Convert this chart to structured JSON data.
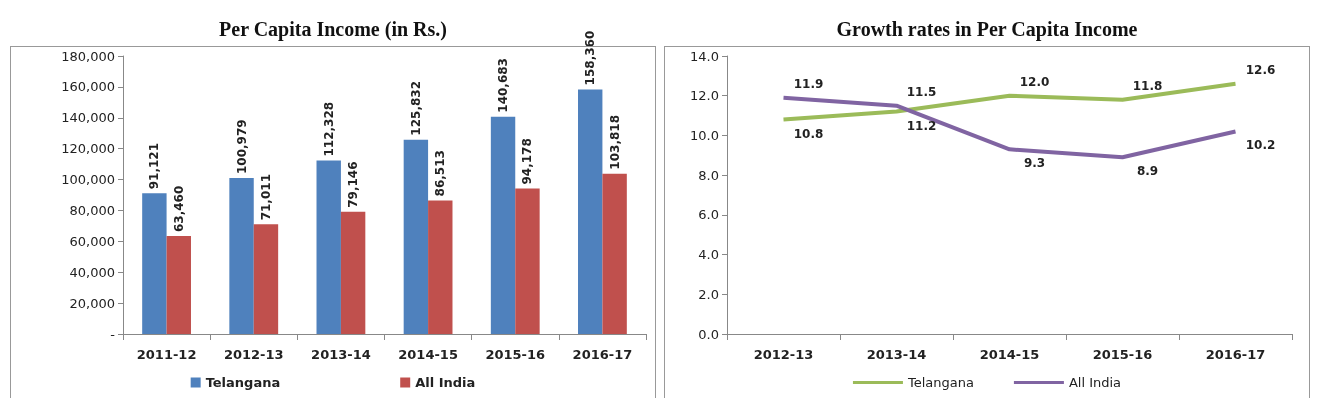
{
  "chart_data": [
    {
      "type": "bar",
      "title": "Per Capita Income (in Rs.)",
      "categories": [
        "2011-12",
        "2012-13",
        "2013-14",
        "2014-15",
        "2015-16",
        "2016-17"
      ],
      "series": [
        {
          "name": "Telangana",
          "color": "#4f81bd",
          "values": [
            91121,
            100979,
            112328,
            125832,
            140683,
            158360
          ],
          "value_labels": [
            "91,121",
            "100,979",
            "112,328",
            "125,832",
            "140,683",
            "158,360"
          ]
        },
        {
          "name": "All India",
          "color": "#c0504d",
          "values": [
            63460,
            71011,
            79146,
            86513,
            94178,
            103818
          ],
          "value_labels": [
            "63,460",
            "71,011",
            "79,146",
            "86,513",
            "94,178",
            "103,818"
          ]
        }
      ],
      "ylim": [
        0,
        180000
      ],
      "yticks": [
        {
          "value": 0,
          "label": "-"
        },
        {
          "value": 20000,
          "label": "20,000"
        },
        {
          "value": 40000,
          "label": "40,000"
        },
        {
          "value": 60000,
          "label": "60,000"
        },
        {
          "value": 80000,
          "label": "80,000"
        },
        {
          "value": 100000,
          "label": "100,000"
        },
        {
          "value": 120000,
          "label": "120,000"
        },
        {
          "value": 140000,
          "label": "140,000"
        },
        {
          "value": 160000,
          "label": "160,000"
        },
        {
          "value": 180000,
          "label": "180,000"
        }
      ],
      "grid": false,
      "legend": "bottom"
    },
    {
      "type": "line",
      "title": "Growth rates in Per Capita Income",
      "categories": [
        "2012-13",
        "2013-14",
        "2014-15",
        "2015-16",
        "2016-17"
      ],
      "series": [
        {
          "name": "Telangana",
          "color": "#9bbb59",
          "values": [
            10.8,
            11.2,
            12.0,
            11.8,
            12.6
          ],
          "value_labels": [
            "10.8",
            "11.2",
            "12.0",
            "11.8",
            "12.6"
          ]
        },
        {
          "name": "All India",
          "color": "#8064a2",
          "values": [
            11.9,
            11.5,
            9.3,
            8.9,
            10.2
          ],
          "value_labels": [
            "11.9",
            "11.5",
            "9.3",
            "8.9",
            "10.2"
          ]
        }
      ],
      "ylim": [
        0,
        14
      ],
      "yticks": [
        {
          "value": 0,
          "label": "0.0"
        },
        {
          "value": 2,
          "label": "2.0"
        },
        {
          "value": 4,
          "label": "4.0"
        },
        {
          "value": 6,
          "label": "6.0"
        },
        {
          "value": 8,
          "label": "8.0"
        },
        {
          "value": 10,
          "label": "10.0"
        },
        {
          "value": 12,
          "label": "12.0"
        },
        {
          "value": 14,
          "label": "14.0"
        }
      ],
      "grid": false,
      "legend": "bottom",
      "marker": "none"
    }
  ]
}
